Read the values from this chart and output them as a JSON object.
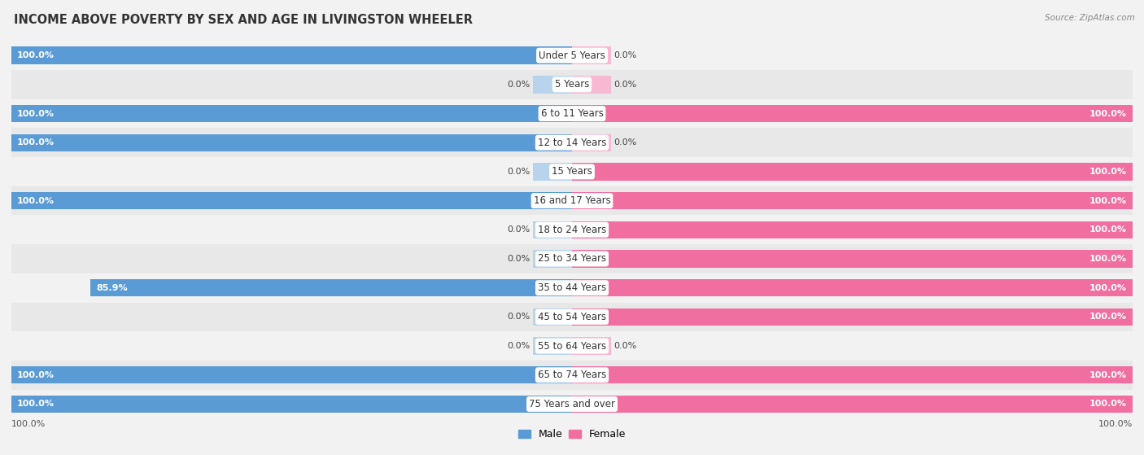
{
  "title": "INCOME ABOVE POVERTY BY SEX AND AGE IN LIVINGSTON WHEELER",
  "source": "Source: ZipAtlas.com",
  "categories": [
    "Under 5 Years",
    "5 Years",
    "6 to 11 Years",
    "12 to 14 Years",
    "15 Years",
    "16 and 17 Years",
    "18 to 24 Years",
    "25 to 34 Years",
    "35 to 44 Years",
    "45 to 54 Years",
    "55 to 64 Years",
    "65 to 74 Years",
    "75 Years and over"
  ],
  "male": [
    100.0,
    0.0,
    100.0,
    100.0,
    0.0,
    100.0,
    0.0,
    0.0,
    85.9,
    0.0,
    0.0,
    100.0,
    100.0
  ],
  "female": [
    0.0,
    0.0,
    100.0,
    0.0,
    100.0,
    100.0,
    100.0,
    100.0,
    100.0,
    100.0,
    0.0,
    100.0,
    100.0
  ],
  "male_color": "#5b9bd5",
  "male_color_light": "#b8d4ed",
  "female_color": "#f06fa0",
  "female_color_light": "#f7b8d2",
  "bg_color": "#f2f2f2",
  "row_color_a": "#f2f2f2",
  "row_color_b": "#e8e8e8",
  "xlim": 100,
  "stub_size": 7,
  "legend_male": "Male",
  "legend_female": "Female",
  "title_fontsize": 10.5,
  "label_fontsize": 8.5,
  "value_fontsize": 8.0
}
